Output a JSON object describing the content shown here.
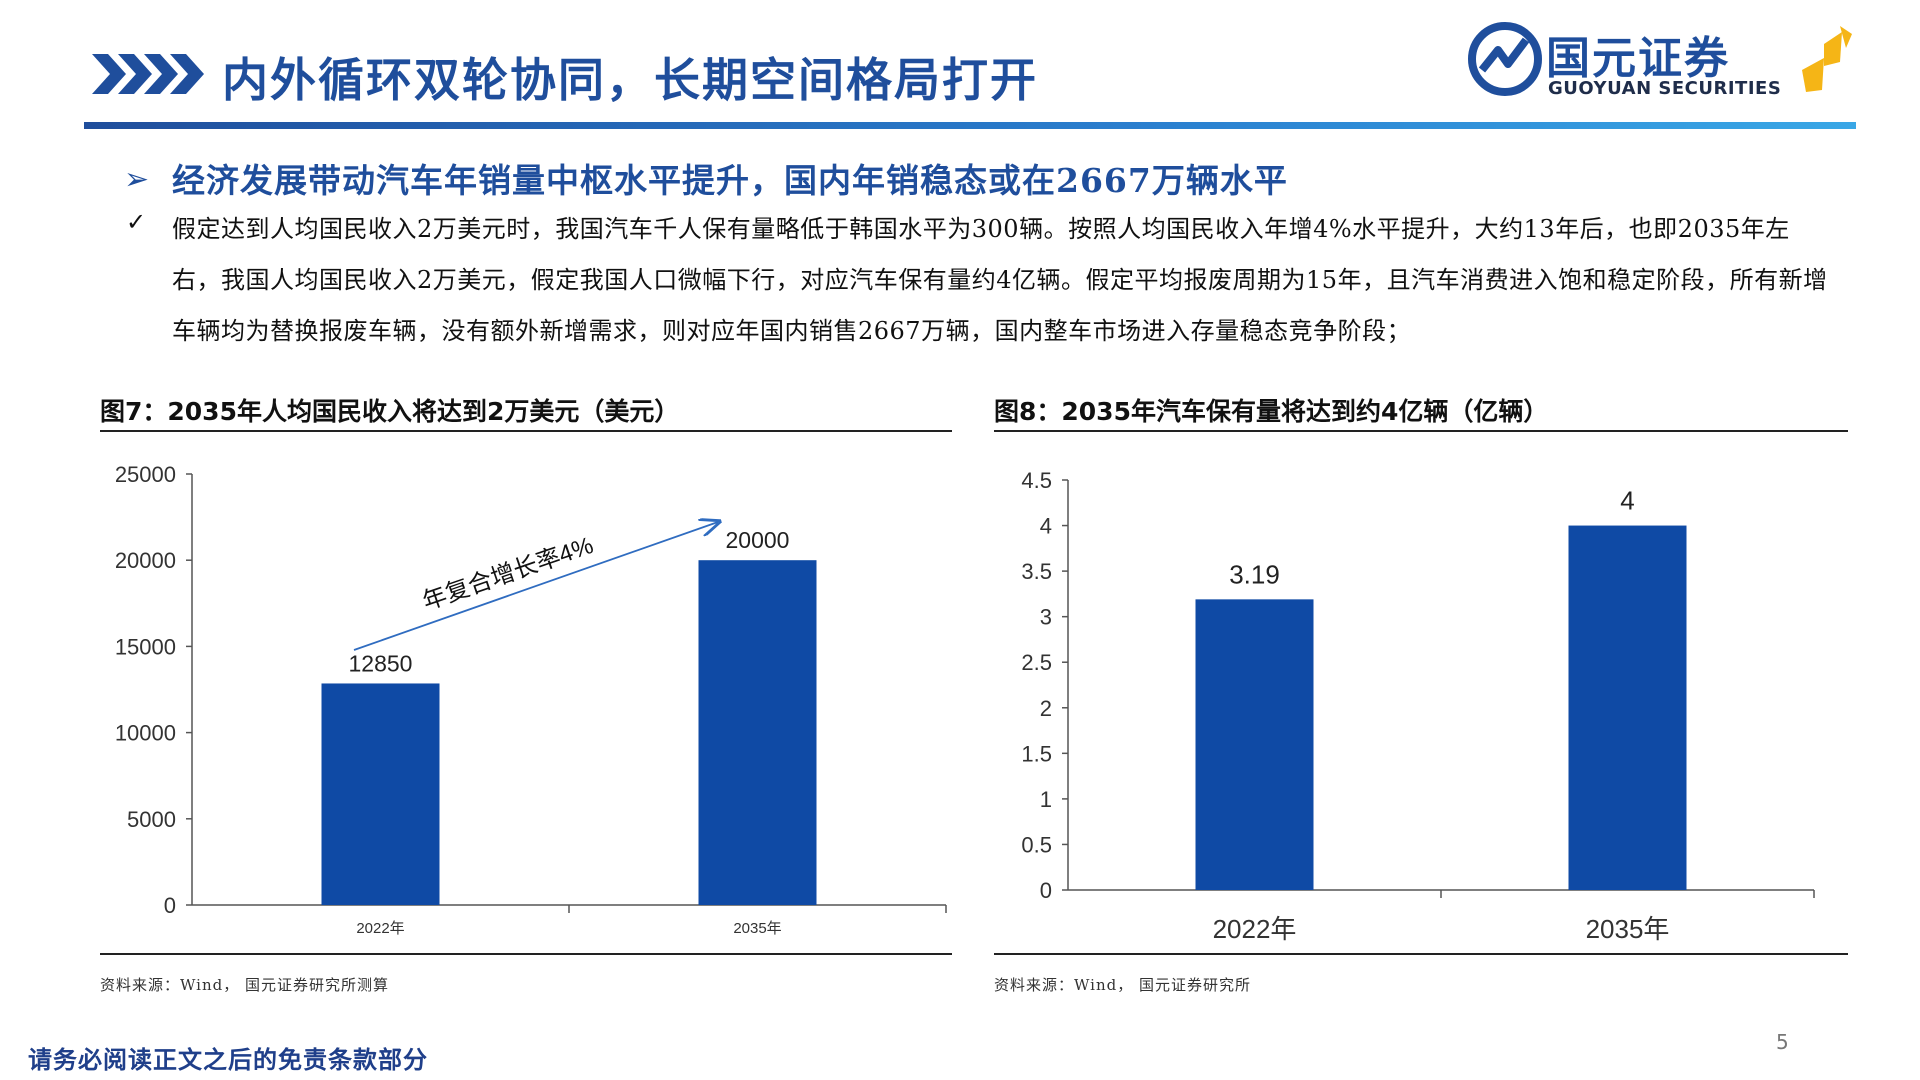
{
  "header": {
    "title": "内外循环双轮协同，长期空间格局打开",
    "logo_cn": "国元证券",
    "logo_en": "GUOYUAN SECURITIES"
  },
  "section": {
    "heading": "经济发展带动汽车年销量中枢水平提升，国内年销稳态或在2667万辆水平",
    "body": "假定达到人均国民收入2万美元时，我国汽车千人保有量略低于韩国水平为300辆。按照人均国民收入年增4%水平提升，大约13年后，也即2035年左右，我国人均国民收入2万美元，假定我国人口微幅下行，对应汽车保有量约4亿辆。假定平均报废周期为15年，且汽车消费进入饱和稳定阶段，所有新增车辆均为替换报废车辆，没有额外新增需求，则对应年国内销售2667万辆，国内整车市场进入存量稳态竞争阶段；"
  },
  "colors": {
    "brand": "#1f4e9c",
    "bar": "#0f4aa5",
    "accent_arrow": "#2f6cc0"
  },
  "chart_data": [
    {
      "type": "bar",
      "title": "图7：2035年人均国民收入将达到2万美元（美元）",
      "categories": [
        "2022年",
        "2035年"
      ],
      "values": [
        12850,
        20000
      ],
      "data_labels": [
        "12850",
        "20000"
      ],
      "ylim": [
        0,
        25000
      ],
      "yticks": [
        "0",
        "5000",
        "10000",
        "15000",
        "20000",
        "25000"
      ],
      "annotation": "年复合增长率4%",
      "source": "资料来源：Wind， 国元证券研究所测算"
    },
    {
      "type": "bar",
      "title": "图8：2035年汽车保有量将达到约4亿辆（亿辆）",
      "categories": [
        "2022年",
        "2035年"
      ],
      "values": [
        3.19,
        4
      ],
      "data_labels": [
        "3.19",
        "4"
      ],
      "ylim": [
        0,
        4.5
      ],
      "yticks": [
        "0",
        "0.5",
        "1",
        "1.5",
        "2",
        "2.5",
        "3",
        "3.5",
        "4",
        "4.5"
      ],
      "source": "资料来源：Wind， 国元证券研究所"
    }
  ],
  "footer": {
    "disclaimer": "请务必阅读正文之后的免责条款部分",
    "page": "5"
  }
}
